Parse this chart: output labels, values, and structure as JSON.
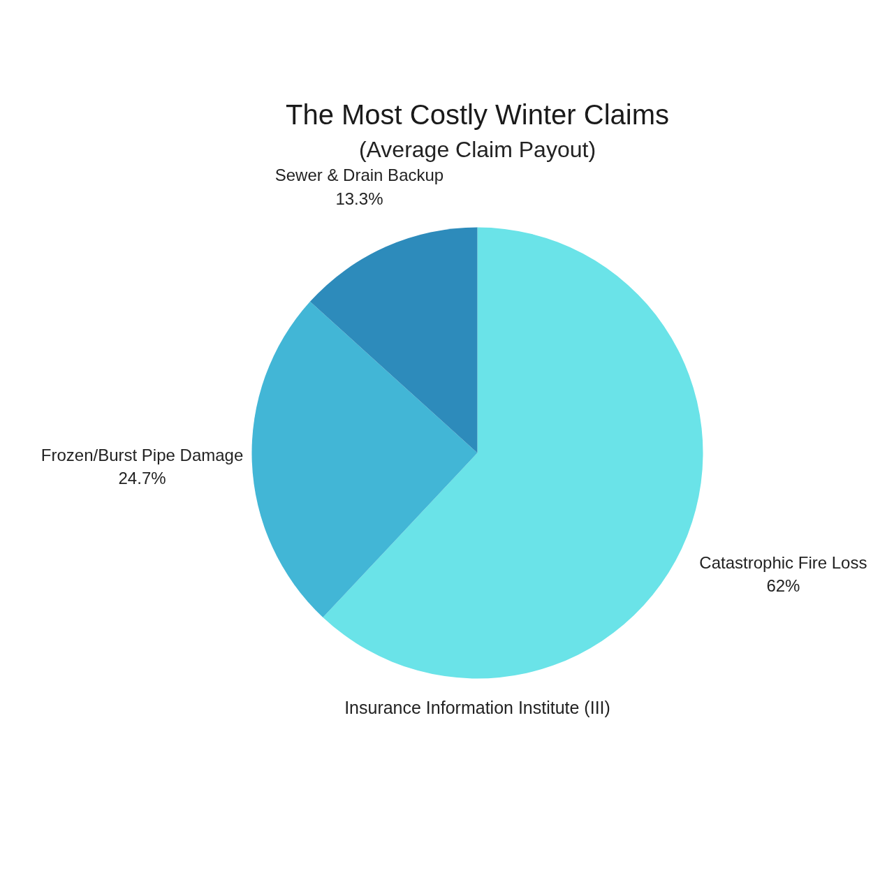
{
  "chart_data": {
    "type": "pie",
    "title": "The Most Costly Winter Claims",
    "subtitle": "(Average Claim Payout)",
    "categories": [
      "Catastrophic Fire Loss",
      "Frozen/Burst Pipe Damage",
      "Sewer & Drain Backup"
    ],
    "values": [
      62,
      24.7,
      13.3
    ],
    "colors": [
      "#6ae3e8",
      "#42b6d6",
      "#2d8bbb"
    ],
    "value_labels": [
      "62%",
      "24.7%",
      "13.3%"
    ],
    "annotations": [
      "Insurance Information Institute (III)"
    ]
  }
}
